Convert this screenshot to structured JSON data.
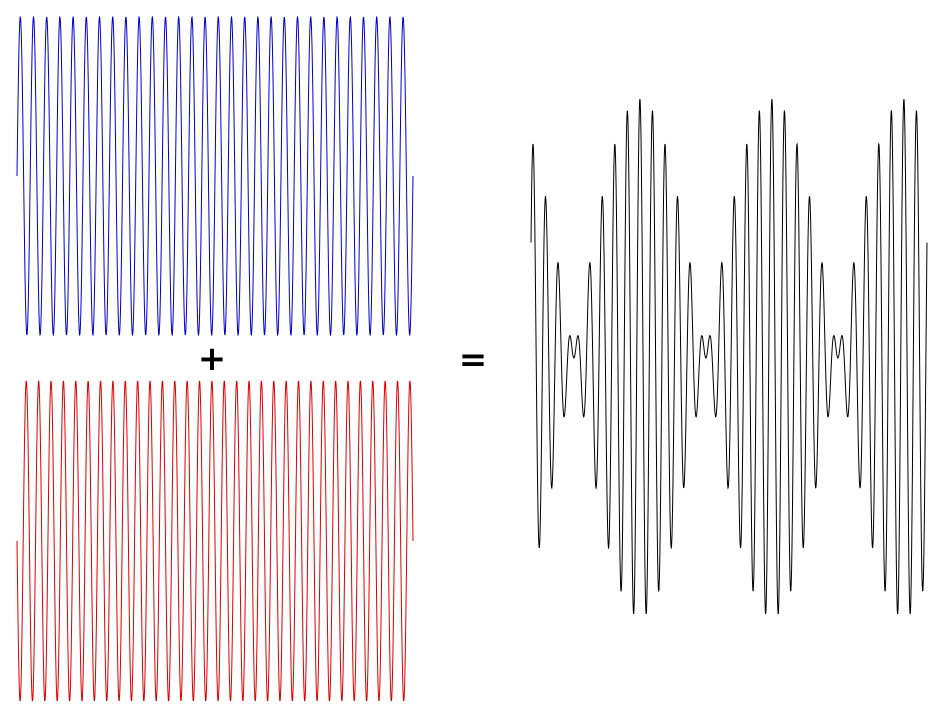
{
  "operators": {
    "plus": "+",
    "equals": "="
  },
  "waves": {
    "top": {
      "color": "#0000cc",
      "cycles": 30,
      "phase_deg": 0
    },
    "bottom": {
      "color": "#dd0000",
      "cycles": 32,
      "phase_deg": 180
    },
    "sum": {
      "color": "#000000",
      "components": [
        "top",
        "bottom"
      ],
      "beat_count": 3
    }
  }
}
